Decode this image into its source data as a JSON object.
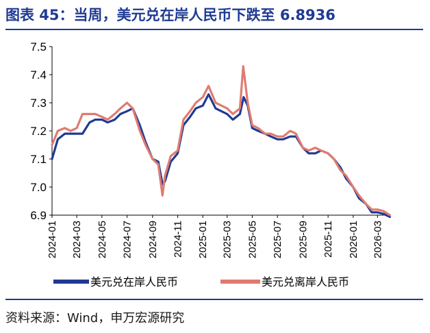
{
  "header": {
    "title": "图表 45：当周，美元兑在岸人民币下跌至 6.8936"
  },
  "footer": {
    "source": "资料来源：Wind，申万宏源研究"
  },
  "chart_data": {
    "type": "line",
    "ylim": [
      6.9,
      7.5
    ],
    "yticks": [
      "7.5",
      "7.4",
      "7.3",
      "7.2",
      "7.1",
      "7.0",
      "6.9"
    ],
    "xticks": [
      "2024-01",
      "2024-03",
      "2024-05",
      "2024-07",
      "2024-09",
      "2024-11",
      "2025-01",
      "2025-03",
      "2025-05",
      "2025-07",
      "2025-09",
      "2025-11",
      "2026-01",
      "2026-03"
    ],
    "colors": {
      "onshore": "#1f3a93",
      "offshore": "#e07b70",
      "title": "#1f3a93"
    },
    "series": [
      {
        "name": "美元兑在岸人民币",
        "points": [
          [
            "2024-01-01",
            7.1
          ],
          [
            "2024-01-15",
            7.17
          ],
          [
            "2024-02-01",
            7.19
          ],
          [
            "2024-02-15",
            7.19
          ],
          [
            "2024-03-01",
            7.19
          ],
          [
            "2024-03-15",
            7.19
          ],
          [
            "2024-04-01",
            7.23
          ],
          [
            "2024-04-15",
            7.24
          ],
          [
            "2024-05-01",
            7.24
          ],
          [
            "2024-05-15",
            7.23
          ],
          [
            "2024-06-01",
            7.24
          ],
          [
            "2024-06-15",
            7.26
          ],
          [
            "2024-07-01",
            7.27
          ],
          [
            "2024-07-15",
            7.28
          ],
          [
            "2024-08-01",
            7.22
          ],
          [
            "2024-08-15",
            7.16
          ],
          [
            "2024-09-01",
            7.1
          ],
          [
            "2024-09-15",
            7.09
          ],
          [
            "2024-09-25",
            7.01
          ],
          [
            "2024-10-01",
            7.02
          ],
          [
            "2024-10-15",
            7.09
          ],
          [
            "2024-11-01",
            7.12
          ],
          [
            "2024-11-15",
            7.22
          ],
          [
            "2024-12-01",
            7.25
          ],
          [
            "2024-12-15",
            7.28
          ],
          [
            "2025-01-01",
            7.29
          ],
          [
            "2025-01-15",
            7.33
          ],
          [
            "2025-02-01",
            7.28
          ],
          [
            "2025-02-15",
            7.27
          ],
          [
            "2025-03-01",
            7.26
          ],
          [
            "2025-03-15",
            7.24
          ],
          [
            "2025-04-01",
            7.26
          ],
          [
            "2025-04-10",
            7.32
          ],
          [
            "2025-04-20",
            7.29
          ],
          [
            "2025-05-01",
            7.21
          ],
          [
            "2025-05-15",
            7.2
          ],
          [
            "2025-06-01",
            7.19
          ],
          [
            "2025-06-15",
            7.18
          ],
          [
            "2025-07-01",
            7.17
          ],
          [
            "2025-07-15",
            7.17
          ],
          [
            "2025-08-01",
            7.18
          ],
          [
            "2025-08-15",
            7.18
          ],
          [
            "2025-09-01",
            7.14
          ],
          [
            "2025-09-15",
            7.12
          ],
          [
            "2025-10-01",
            7.12
          ],
          [
            "2025-10-15",
            7.13
          ],
          [
            "2025-11-01",
            7.12
          ],
          [
            "2025-11-15",
            7.1
          ],
          [
            "2025-12-01",
            7.07
          ],
          [
            "2025-12-15",
            7.03
          ],
          [
            "2026-01-01",
            7.0
          ],
          [
            "2026-01-15",
            6.96
          ],
          [
            "2026-02-01",
            6.94
          ],
          [
            "2026-02-15",
            6.91
          ],
          [
            "2026-03-01",
            6.91
          ],
          [
            "2026-03-15",
            6.905
          ],
          [
            "2026-03-31",
            6.8936
          ]
        ]
      },
      {
        "name": "美元兑离岸人民币",
        "points": [
          [
            "2024-01-01",
            7.15
          ],
          [
            "2024-01-15",
            7.2
          ],
          [
            "2024-02-01",
            7.21
          ],
          [
            "2024-02-15",
            7.2
          ],
          [
            "2024-03-01",
            7.21
          ],
          [
            "2024-03-15",
            7.26
          ],
          [
            "2024-04-01",
            7.26
          ],
          [
            "2024-04-15",
            7.26
          ],
          [
            "2024-05-01",
            7.25
          ],
          [
            "2024-05-15",
            7.24
          ],
          [
            "2024-06-01",
            7.26
          ],
          [
            "2024-06-15",
            7.28
          ],
          [
            "2024-07-01",
            7.3
          ],
          [
            "2024-07-15",
            7.28
          ],
          [
            "2024-08-01",
            7.2
          ],
          [
            "2024-08-15",
            7.15
          ],
          [
            "2024-09-01",
            7.1
          ],
          [
            "2024-09-15",
            7.08
          ],
          [
            "2024-09-25",
            6.97
          ],
          [
            "2024-10-01",
            7.04
          ],
          [
            "2024-10-15",
            7.11
          ],
          [
            "2024-11-01",
            7.13
          ],
          [
            "2024-11-15",
            7.24
          ],
          [
            "2024-12-01",
            7.27
          ],
          [
            "2024-12-15",
            7.3
          ],
          [
            "2025-01-01",
            7.32
          ],
          [
            "2025-01-15",
            7.36
          ],
          [
            "2025-02-01",
            7.3
          ],
          [
            "2025-02-15",
            7.29
          ],
          [
            "2025-03-01",
            7.28
          ],
          [
            "2025-03-15",
            7.26
          ],
          [
            "2025-04-01",
            7.28
          ],
          [
            "2025-04-09",
            7.43
          ],
          [
            "2025-04-20",
            7.3
          ],
          [
            "2025-05-01",
            7.22
          ],
          [
            "2025-05-15",
            7.21
          ],
          [
            "2025-06-01",
            7.19
          ],
          [
            "2025-06-15",
            7.19
          ],
          [
            "2025-07-01",
            7.18
          ],
          [
            "2025-07-15",
            7.18
          ],
          [
            "2025-08-01",
            7.2
          ],
          [
            "2025-08-15",
            7.19
          ],
          [
            "2025-09-01",
            7.14
          ],
          [
            "2025-09-15",
            7.13
          ],
          [
            "2025-10-01",
            7.14
          ],
          [
            "2025-10-15",
            7.13
          ],
          [
            "2025-11-01",
            7.12
          ],
          [
            "2025-11-15",
            7.1
          ],
          [
            "2025-12-01",
            7.06
          ],
          [
            "2025-12-15",
            7.04
          ],
          [
            "2026-01-01",
            7.0
          ],
          [
            "2026-01-15",
            6.97
          ],
          [
            "2026-02-01",
            6.94
          ],
          [
            "2026-02-15",
            6.92
          ],
          [
            "2026-03-01",
            6.92
          ],
          [
            "2026-03-15",
            6.915
          ],
          [
            "2026-03-31",
            6.9
          ]
        ]
      }
    ],
    "legend": {
      "position": "bottom"
    }
  }
}
